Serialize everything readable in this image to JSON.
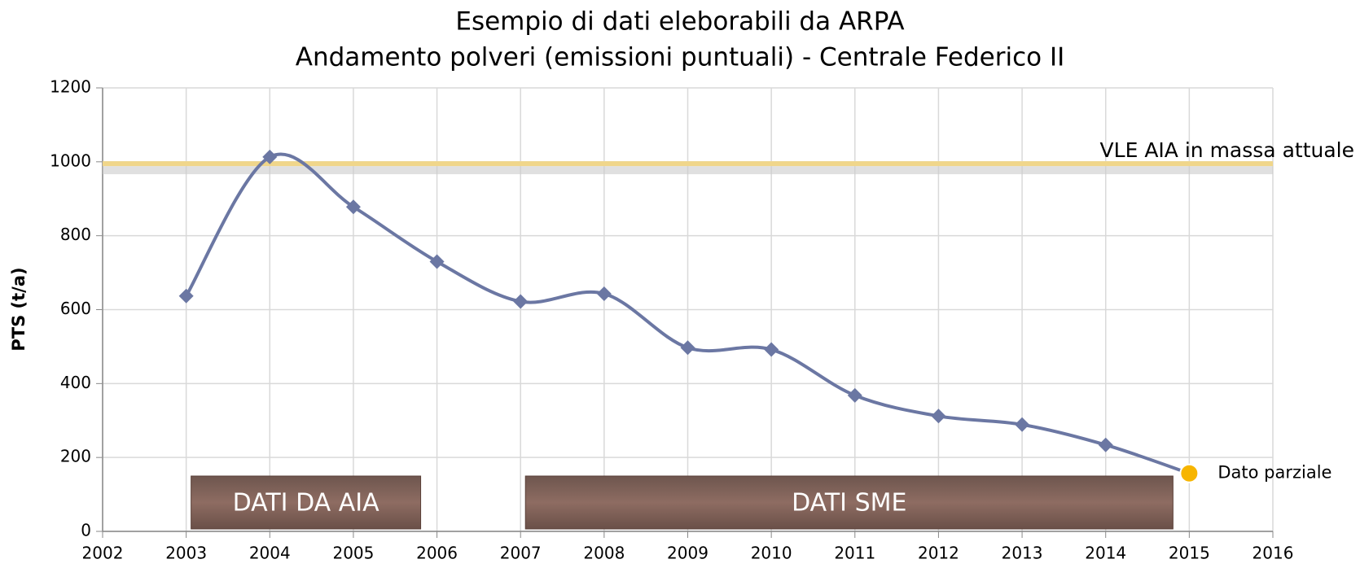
{
  "chart_data": {
    "type": "line",
    "title": [
      "Esempio di dati eleborabili da ARPA",
      "Andamento polveri (emissioni puntuali) - Centrale Federico II"
    ],
    "y_label": "PTS (t/a)",
    "x": [
      2003,
      2004,
      2005,
      2006,
      2007,
      2008,
      2009,
      2010,
      2011,
      2012,
      2013,
      2014,
      2015
    ],
    "series": [
      {
        "color": "#6b77a3",
        "values": [
          637,
          1013,
          878,
          730,
          622,
          643,
          497,
          492,
          368,
          312,
          289,
          234,
          157
        ]
      }
    ],
    "partial_point": {
      "label": "Dato parziale",
      "color": "#f7b500"
    },
    "reference_line": {
      "label": "VLE  AIA in massa attuale",
      "value": 995,
      "color": "#f0d68a"
    },
    "periods": [
      {
        "label": "DATI DA AIA",
        "start": 2003,
        "end": 2006
      },
      {
        "label": "DATI SME",
        "start": 2007,
        "end": 2015
      }
    ],
    "xlim": [
      2002,
      2016
    ],
    "xticks": [
      2002,
      2003,
      2004,
      2005,
      2006,
      2007,
      2008,
      2009,
      2010,
      2011,
      2012,
      2013,
      2014,
      2015,
      2016
    ],
    "ylim": [
      0,
      1200
    ],
    "yticks": [
      0,
      200,
      400,
      600,
      800,
      1000,
      1200
    ],
    "grid": true
  }
}
